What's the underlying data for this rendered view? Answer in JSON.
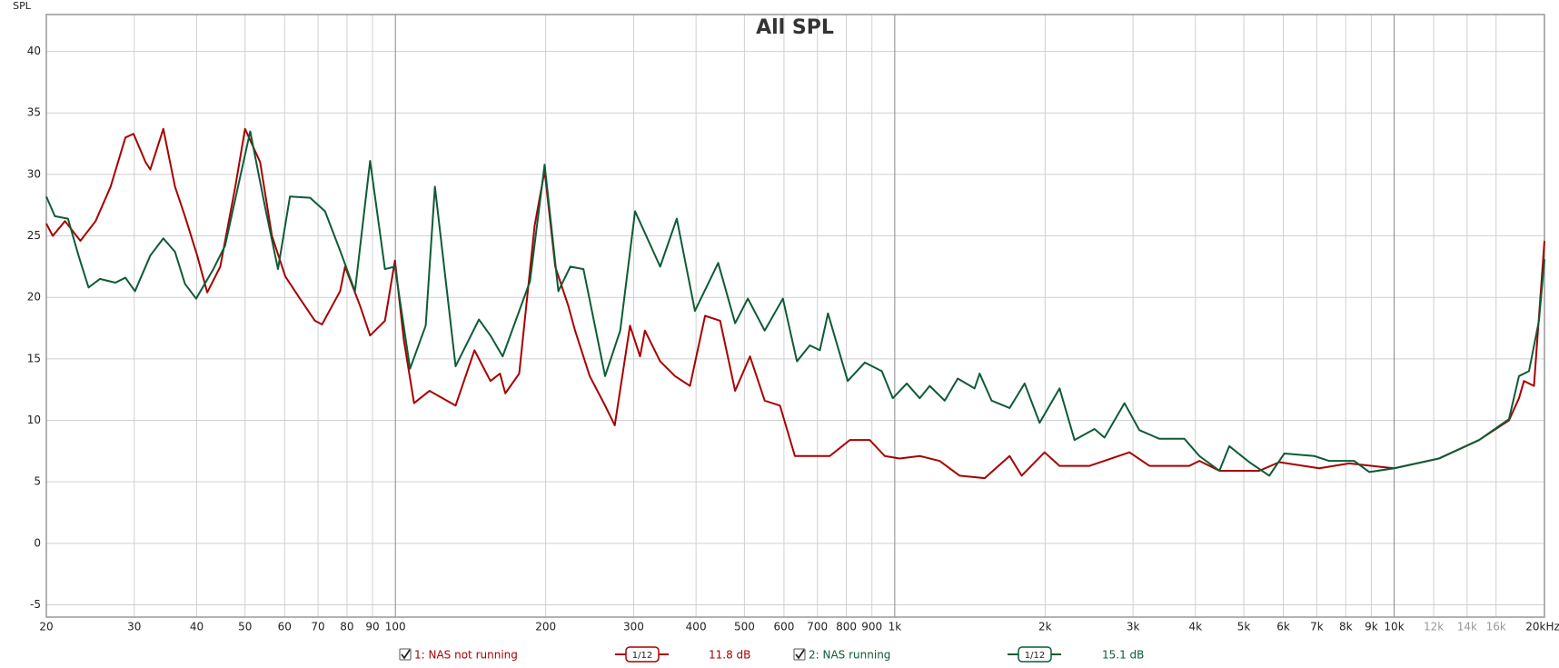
{
  "chart_data": {
    "type": "line",
    "title": "All SPL",
    "ylabel": "SPL",
    "xscale": "log",
    "xlim": [
      20,
      20000
    ],
    "ylim": [
      -6,
      43
    ],
    "grid": true,
    "xticks": [
      20,
      30,
      40,
      50,
      60,
      70,
      80,
      90,
      100,
      200,
      300,
      400,
      500,
      600,
      700,
      800,
      900,
      {
        "value": 1000,
        "label": "1k"
      },
      {
        "value": 2000,
        "label": "2k"
      },
      {
        "value": 3000,
        "label": "3k"
      },
      {
        "value": 4000,
        "label": "4k"
      },
      {
        "value": 5000,
        "label": "5k"
      },
      {
        "value": 6000,
        "label": "6k"
      },
      {
        "value": 7000,
        "label": "7k"
      },
      {
        "value": 8000,
        "label": "8k"
      },
      {
        "value": 9000,
        "label": "9k"
      },
      {
        "value": 10000,
        "label": "10k"
      },
      {
        "value": 12000,
        "label": "12k"
      },
      {
        "value": 14000,
        "label": "14k"
      },
      {
        "value": 16000,
        "label": "16k"
      },
      {
        "value": 20000,
        "label": "20kHz"
      }
    ],
    "yticks": [
      -5,
      0,
      5,
      10,
      15,
      20,
      25,
      30,
      35,
      40
    ],
    "series": [
      {
        "name": "1: NAS not running",
        "color": "#a80000",
        "smoothing": "1/12",
        "level": "11.8 dB",
        "x": [
          20,
          20.6,
          21.8,
          23.4,
          25.1,
          26.9,
          28.8,
          29.9,
          31.6,
          32.3,
          34.3,
          36.2,
          37.9,
          40.1,
          42,
          44.6,
          47.8,
          50,
          53.6,
          56.6,
          60.2,
          64.4,
          69,
          71.3,
          77.5,
          79.3,
          85,
          89,
          95.3,
          99.8,
          104,
          109,
          117,
          132,
          144,
          155,
          162,
          166,
          177,
          190,
          199,
          209,
          222,
          229,
          245,
          263,
          275,
          295,
          309,
          316,
          339,
          363,
          389,
          417,
          447,
          479,
          513,
          549,
          589,
          631,
          676,
          741,
          813,
          891,
          955,
          1023,
          1122,
          1230,
          1349,
          1514,
          1698,
          1795,
          1995,
          2138,
          2455,
          2951,
          3236,
          3890,
          4074,
          4467,
          5370,
          5888,
          7079,
          8128,
          10000,
          12303,
          14791,
          16982,
          17783,
          18197,
          19055,
          20000
        ],
        "values": [
          26,
          25,
          26.2,
          24.6,
          26.2,
          29,
          33,
          33.3,
          31,
          30.4,
          33.7,
          29,
          26.6,
          23.4,
          20.4,
          22.5,
          29,
          33.7,
          31,
          25,
          21.7,
          19.9,
          18.1,
          17.8,
          20.5,
          22.5,
          19.3,
          16.9,
          18.1,
          23,
          16.5,
          11.4,
          12.4,
          11.2,
          15.7,
          13.2,
          13.8,
          12.2,
          13.8,
          25.8,
          30.3,
          22.5,
          19.3,
          17.3,
          13.6,
          11.2,
          9.6,
          17.7,
          15.2,
          17.3,
          14.8,
          13.6,
          12.8,
          18.5,
          18.1,
          12.4,
          15.2,
          11.6,
          11.2,
          7.1,
          7.1,
          7.1,
          8.4,
          8.4,
          7.1,
          6.9,
          7.1,
          6.7,
          5.5,
          5.3,
          7.1,
          5.5,
          7.4,
          6.3,
          6.3,
          7.4,
          6.3,
          6.3,
          6.7,
          5.9,
          5.9,
          6.6,
          6.1,
          6.5,
          6.1,
          6.9,
          8.4,
          10,
          11.8,
          13.2,
          12.8,
          24.6
        ]
      },
      {
        "name": "2: NAS running",
        "color": "#0d5c36",
        "smoothing": "1/12",
        "level": "15.1 dB",
        "x": [
          20,
          20.8,
          22.1,
          23.2,
          24.3,
          25.6,
          27.5,
          28.8,
          30.1,
          32.3,
          34.3,
          36.2,
          37.9,
          39.9,
          43.2,
          45.6,
          48.4,
          51.2,
          54.8,
          58.2,
          61.5,
          67.5,
          72.3,
          77.5,
          83,
          89,
          95.3,
          99.8,
          107,
          115,
          120,
          132,
          147,
          155,
          164,
          186,
          199,
          212,
          224,
          238,
          263,
          282,
          302,
          339,
          366,
          398,
          443,
          479,
          508,
          549,
          597,
          637,
          676,
          708,
          735,
          805,
          871,
          942,
          991,
          1057,
          1122,
          1175,
          1259,
          1337,
          1445,
          1479,
          1563,
          1698,
          1820,
          1950,
          2138,
          2291,
          2512,
          2630,
          2884,
          3090,
          3388,
          3802,
          4074,
          4467,
          4677,
          5129,
          5623,
          6026,
          6918,
          7413,
          8318,
          8913,
          10000,
          12303,
          14791,
          16982,
          17783,
          18621,
          19498,
          20000
        ],
        "values": [
          28.2,
          26.6,
          26.4,
          23.4,
          20.8,
          21.5,
          21.2,
          21.6,
          20.5,
          23.4,
          24.8,
          23.7,
          21.1,
          19.9,
          22.3,
          24.2,
          29,
          33.5,
          27.4,
          22.3,
          28.2,
          28.1,
          27,
          23.8,
          20.5,
          31.1,
          22.3,
          22.5,
          14.2,
          17.7,
          29,
          14.4,
          18.2,
          16.9,
          15.2,
          21.3,
          30.8,
          20.5,
          22.5,
          22.3,
          13.6,
          17.3,
          27,
          22.5,
          26.4,
          18.9,
          22.8,
          17.9,
          19.9,
          17.3,
          19.9,
          14.8,
          16.1,
          15.7,
          18.7,
          13.2,
          14.7,
          14,
          11.8,
          13,
          11.8,
          12.8,
          11.6,
          13.4,
          12.6,
          13.8,
          11.6,
          11,
          13,
          9.8,
          12.6,
          8.4,
          9.3,
          8.6,
          11.4,
          9.2,
          8.5,
          8.5,
          7.1,
          5.9,
          7.9,
          6.6,
          5.5,
          7.3,
          7.1,
          6.7,
          6.7,
          5.8,
          6.1,
          6.9,
          8.4,
          10.1,
          13.6,
          14,
          18.1,
          23.1
        ]
      }
    ]
  }
}
